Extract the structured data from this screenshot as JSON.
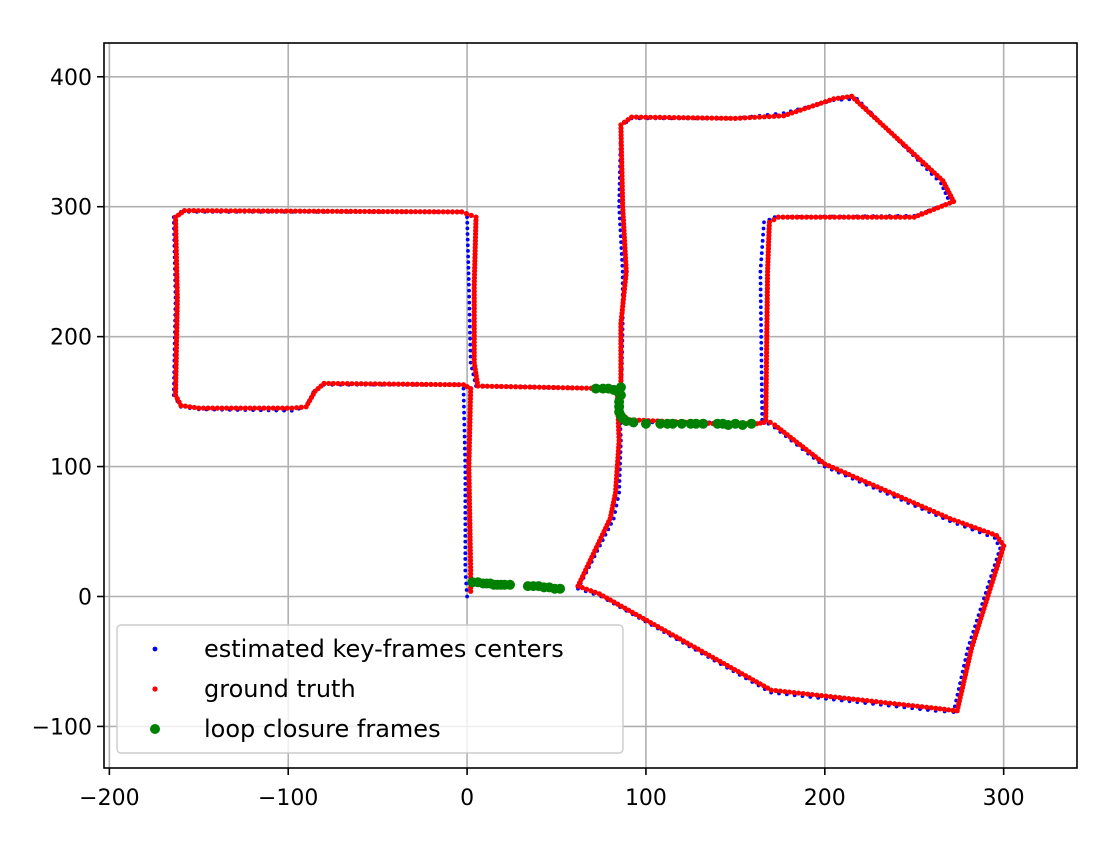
{
  "chart_data": {
    "type": "scatter",
    "title": "",
    "xlabel": "",
    "ylabel": "",
    "xlim": [
      -203,
      341
    ],
    "ylim": [
      -132,
      426
    ],
    "x_ticks": [
      -200,
      -100,
      0,
      100,
      200,
      300
    ],
    "y_ticks": [
      -100,
      0,
      100,
      200,
      300,
      400
    ],
    "x_tick_labels": [
      "−200",
      "−100",
      "0",
      "100",
      "200",
      "300"
    ],
    "y_tick_labels": [
      "−100",
      "0",
      "100",
      "200",
      "300",
      "400"
    ],
    "grid": true,
    "legend_position": "lower-left",
    "series": [
      {
        "name": "estimated key-frames centers",
        "color": "#0000ff",
        "vertices": [
          [
            0,
            0
          ],
          [
            -1,
            20
          ],
          [
            -1,
            100
          ],
          [
            -2,
            160
          ],
          [
            -6,
            163
          ],
          [
            -80,
            163
          ],
          [
            -86,
            157
          ],
          [
            -90,
            146
          ],
          [
            -98,
            143
          ],
          [
            -150,
            144
          ],
          [
            -160,
            146
          ],
          [
            -164,
            155
          ],
          [
            -163,
            230
          ],
          [
            -164,
            292
          ],
          [
            -160,
            296
          ],
          [
            -4,
            296
          ],
          [
            0,
            292
          ],
          [
            1,
            240
          ],
          [
            2,
            180
          ],
          [
            5,
            162
          ],
          [
            80,
            160
          ],
          [
            85,
            155
          ],
          [
            86,
            120
          ],
          [
            85,
            80
          ],
          [
            82,
            60
          ],
          [
            62,
            6
          ],
          [
            75,
            0
          ],
          [
            170,
            -74
          ],
          [
            262,
            -88
          ],
          [
            272,
            -89
          ],
          [
            280,
            -40
          ],
          [
            298,
            37
          ],
          [
            295,
            45
          ],
          [
            270,
            58
          ],
          [
            200,
            100
          ],
          [
            172,
            130
          ],
          [
            165,
            136
          ],
          [
            164,
            250
          ],
          [
            166,
            288
          ],
          [
            172,
            292
          ],
          [
            250,
            293
          ],
          [
            270,
            303
          ],
          [
            265,
            318
          ],
          [
            218,
            383
          ],
          [
            205,
            382
          ],
          [
            177,
            372
          ],
          [
            150,
            368
          ],
          [
            92,
            368
          ],
          [
            86,
            362
          ],
          [
            85,
            300
          ],
          [
            87,
            250
          ],
          [
            87,
            210
          ],
          [
            86,
            140
          ],
          [
            90,
            134
          ],
          [
            140,
            134
          ],
          [
            160,
            132
          ],
          [
            165,
            134
          ]
        ],
        "step": 4.5
      },
      {
        "name": "ground truth",
        "color": "#ff0000",
        "vertices": [
          [
            2,
            4
          ],
          [
            2,
            20
          ],
          [
            1,
            100
          ],
          [
            2,
            160
          ],
          [
            -2,
            163
          ],
          [
            -80,
            164
          ],
          [
            -85,
            158
          ],
          [
            -90,
            146
          ],
          [
            -98,
            145
          ],
          [
            -150,
            145
          ],
          [
            -160,
            147
          ],
          [
            -163,
            155
          ],
          [
            -162,
            230
          ],
          [
            -163,
            292
          ],
          [
            -158,
            297
          ],
          [
            -3,
            296
          ],
          [
            5,
            292
          ],
          [
            4,
            240
          ],
          [
            4,
            180
          ],
          [
            6,
            162
          ],
          [
            80,
            160
          ],
          [
            84,
            155
          ],
          [
            85,
            120
          ],
          [
            83,
            80
          ],
          [
            80,
            60
          ],
          [
            62,
            8
          ],
          [
            74,
            2
          ],
          [
            170,
            -72
          ],
          [
            262,
            -86
          ],
          [
            274,
            -88
          ],
          [
            282,
            -40
          ],
          [
            300,
            39
          ],
          [
            296,
            47
          ],
          [
            270,
            60
          ],
          [
            200,
            102
          ],
          [
            172,
            132
          ],
          [
            167,
            136
          ],
          [
            168,
            250
          ],
          [
            169,
            288
          ],
          [
            174,
            292
          ],
          [
            250,
            292
          ],
          [
            272,
            304
          ],
          [
            266,
            320
          ],
          [
            215,
            385
          ],
          [
            205,
            383
          ],
          [
            177,
            370
          ],
          [
            150,
            368
          ],
          [
            92,
            369
          ],
          [
            86,
            363
          ],
          [
            87,
            300
          ],
          [
            89,
            250
          ],
          [
            86,
            210
          ],
          [
            86,
            140
          ],
          [
            91,
            136
          ],
          [
            140,
            133
          ],
          [
            162,
            133
          ],
          [
            166,
            134
          ]
        ],
        "step": 2.6
      },
      {
        "name": "loop closure frames",
        "color": "#008000",
        "points": [
          [
            3,
            11
          ],
          [
            6,
            11
          ],
          [
            9,
            10
          ],
          [
            11,
            10
          ],
          [
            13,
            10
          ],
          [
            15,
            9
          ],
          [
            17,
            9
          ],
          [
            19,
            9
          ],
          [
            21,
            9
          ],
          [
            24,
            9
          ],
          [
            34,
            8
          ],
          [
            37,
            8
          ],
          [
            40,
            8
          ],
          [
            43,
            7
          ],
          [
            46,
            7
          ],
          [
            49,
            6
          ],
          [
            52,
            6
          ],
          [
            72,
            160
          ],
          [
            76,
            160
          ],
          [
            79,
            160
          ],
          [
            82,
            159
          ],
          [
            84,
            158
          ],
          [
            86,
            161
          ],
          [
            86,
            155
          ],
          [
            85,
            150
          ],
          [
            85,
            146
          ],
          [
            85,
            142
          ],
          [
            86,
            139
          ],
          [
            87,
            137
          ],
          [
            89,
            135
          ],
          [
            93,
            134
          ],
          [
            100,
            133
          ],
          [
            108,
            133
          ],
          [
            112,
            133
          ],
          [
            115,
            133
          ],
          [
            120,
            133
          ],
          [
            125,
            133
          ],
          [
            128,
            133
          ],
          [
            132,
            133
          ],
          [
            140,
            133
          ],
          [
            143,
            133
          ],
          [
            146,
            132
          ],
          [
            150,
            133
          ],
          [
            154,
            132
          ],
          [
            159,
            133
          ]
        ]
      }
    ]
  }
}
